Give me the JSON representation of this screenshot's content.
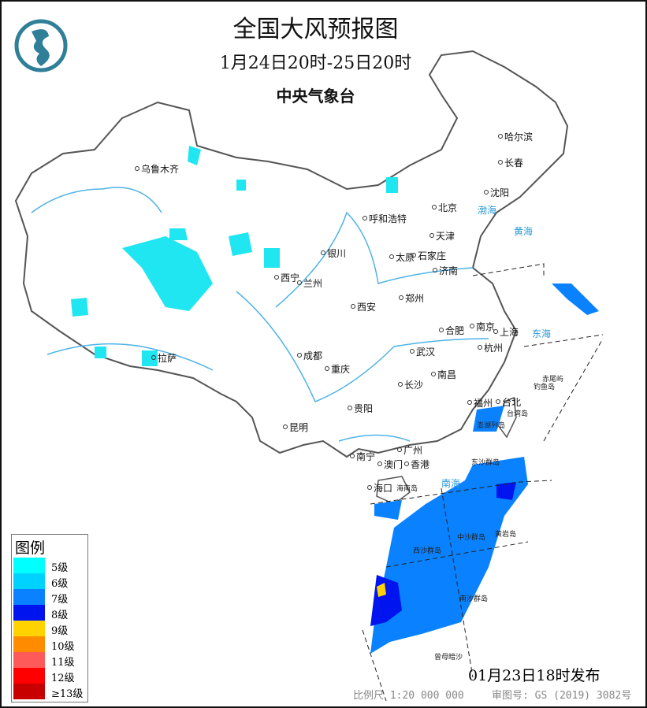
{
  "header": {
    "title": "全国大风预报图",
    "period": "1月24日20时-25日20时",
    "issuer": "中央气象台",
    "logo": "cma-logo"
  },
  "cities": [
    "乌鲁木齐",
    "哈尔滨",
    "长春",
    "沈阳",
    "北京",
    "天津",
    "呼和浩特",
    "银川",
    "太原",
    "石家庄",
    "济南",
    "西宁",
    "兰州",
    "郑州",
    "西安",
    "南京",
    "合肥",
    "上海",
    "杭州",
    "武汉",
    "成都",
    "重庆",
    "南昌",
    "长沙",
    "拉萨",
    "贵阳",
    "福州",
    "台北",
    "昆明",
    "广州",
    "南宁",
    "澳门",
    "香港",
    "海口"
  ],
  "islands": [
    "海南岛",
    "东沙群岛",
    "西沙群岛",
    "中沙群岛",
    "黄岩岛",
    "南沙群岛",
    "曾母暗沙",
    "台湾岛",
    "澎湖列岛",
    "钓鱼岛",
    "赤尾屿"
  ],
  "seas": [
    "渤海",
    "黄海",
    "东海",
    "南海"
  ],
  "legend": {
    "title": "图例",
    "items": [
      {
        "label": "5级",
        "color": "#00ffff"
      },
      {
        "label": "6级",
        "color": "#00d2ff"
      },
      {
        "label": "7级",
        "color": "#0a82ff"
      },
      {
        "label": "8级",
        "color": "#0014f0"
      },
      {
        "label": "9级",
        "color": "#ffd200"
      },
      {
        "label": "10级",
        "color": "#ff8c00"
      },
      {
        "label": "11级",
        "color": "#ff5a5a"
      },
      {
        "label": "12级",
        "color": "#ff0000"
      },
      {
        "label": "≥13级",
        "color": "#c80000"
      }
    ]
  },
  "footer": {
    "issued": "01月23日18时发布",
    "scale": "比例尺 1:20 000 000",
    "approval": "审图号: GS (2019) 3082号"
  }
}
